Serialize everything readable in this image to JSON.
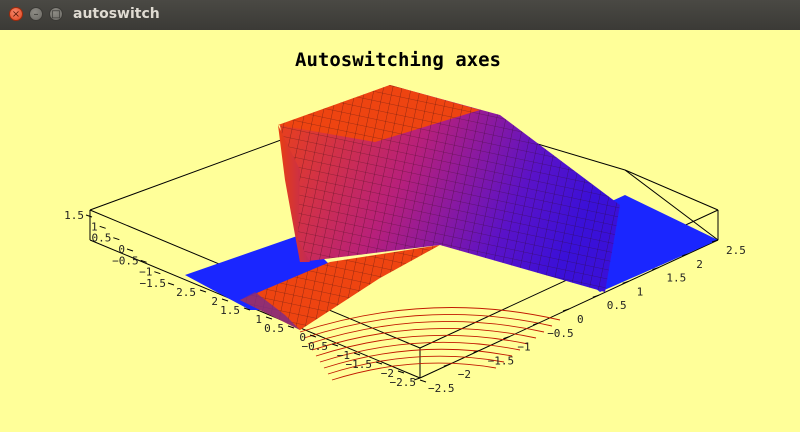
{
  "window": {
    "title": "autoswitch",
    "buttons": {
      "close": "×",
      "minimize": "–",
      "maximize": "□"
    }
  },
  "colors": {
    "background": "#ffff99",
    "surface_top": "#ee4411",
    "surface_low": "#3a10d8",
    "floor": "#1a26ff",
    "contour": "#c21a00"
  },
  "chart_data": {
    "type": "surface3d",
    "title": "Autoswitching axes",
    "axes": {
      "z_ticks": [
        "1.5",
        "1",
        "0.5",
        "0",
        "−0.5",
        "−1",
        "−1.5"
      ],
      "left_ticks": [
        "2.5",
        "2",
        "1.5",
        "1",
        "0.5",
        "0",
        "−0.5",
        "−1",
        "−1.5",
        "−2",
        "−2.5"
      ],
      "right_ticks": [
        "−2.5",
        "−2",
        "−1.5",
        "−1",
        "−0.5",
        "0",
        "0.5",
        "1",
        "1.5",
        "2",
        "2.5"
      ],
      "z_range": [
        -1.5,
        1.5
      ],
      "x_range": [
        -2.5,
        2.5
      ],
      "y_range": [
        -2.5,
        2.5
      ]
    },
    "grid": false,
    "legend": "none"
  }
}
